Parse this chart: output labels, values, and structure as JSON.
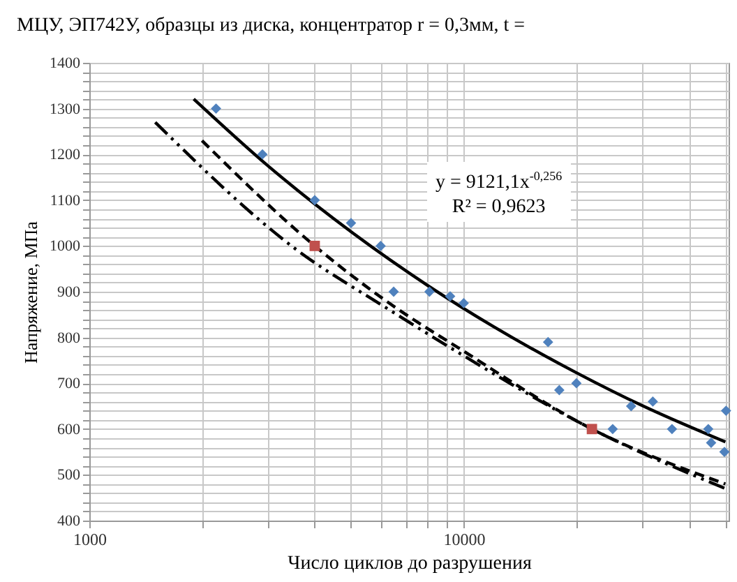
{
  "chart_data": {
    "type": "scatter",
    "title": "МЦУ, ЭП742У, образцы из диска, концентратор r = 0,3мм, t =",
    "xlabel": "Число циклов до разрушения",
    "ylabel": "Напряжение, МПа",
    "annotations": [
      "y = 9121,1x$^{-0,256}$",
      "R² = 0,9623"
    ],
    "log": "x",
    "grid": true,
    "xlim": [
      1000,
      51000
    ],
    "ylim": [
      400,
      1400
    ],
    "xticks": [
      1000,
      {
        "value": 2000,
        "label": null
      },
      {
        "value": 3000,
        "label": null
      },
      {
        "value": 4000,
        "label": null
      },
      {
        "value": 5000,
        "label": null
      },
      {
        "value": 6000,
        "label": null
      },
      {
        "value": 7000,
        "label": null
      },
      {
        "value": 8000,
        "label": null
      },
      {
        "value": 9000,
        "label": null
      },
      10000,
      {
        "value": 20000,
        "label": null
      },
      {
        "value": 30000,
        "label": null
      },
      {
        "value": 40000,
        "label": null
      },
      {
        "value": 50000,
        "label": null
      }
    ],
    "yticks": [
      400,
      {
        "value": 420,
        "label": null
      },
      {
        "value": 440,
        "label": null
      },
      {
        "value": 460,
        "label": null
      },
      {
        "value": 480,
        "label": null
      },
      500,
      {
        "value": 520,
        "label": null
      },
      {
        "value": 540,
        "label": null
      },
      {
        "value": 560,
        "label": null
      },
      {
        "value": 580,
        "label": null
      },
      600,
      {
        "value": 620,
        "label": null
      },
      {
        "value": 640,
        "label": null
      },
      {
        "value": 660,
        "label": null
      },
      {
        "value": 680,
        "label": null
      },
      700,
      {
        "value": 720,
        "label": null
      },
      {
        "value": 740,
        "label": null
      },
      {
        "value": 760,
        "label": null
      },
      {
        "value": 780,
        "label": null
      },
      800,
      {
        "value": 820,
        "label": null
      },
      {
        "value": 840,
        "label": null
      },
      {
        "value": 860,
        "label": null
      },
      {
        "value": 880,
        "label": null
      },
      900,
      {
        "value": 920,
        "label": null
      },
      {
        "value": 940,
        "label": null
      },
      {
        "value": 960,
        "label": null
      },
      {
        "value": 980,
        "label": null
      },
      1000,
      {
        "value": 1020,
        "label": null
      },
      {
        "value": 1040,
        "label": null
      },
      {
        "value": 1060,
        "label": null
      },
      {
        "value": 1080,
        "label": null
      },
      1100,
      {
        "value": 1120,
        "label": null
      },
      {
        "value": 1140,
        "label": null
      },
      {
        "value": 1160,
        "label": null
      },
      {
        "value": 1180,
        "label": null
      },
      1200,
      {
        "value": 1220,
        "label": null
      },
      {
        "value": 1240,
        "label": null
      },
      {
        "value": 1260,
        "label": null
      },
      {
        "value": 1280,
        "label": null
      },
      1300,
      {
        "value": 1320,
        "label": null
      },
      {
        "value": 1340,
        "label": null
      },
      {
        "value": 1360,
        "label": null
      },
      {
        "value": 1380,
        "label": null
      },
      1400
    ],
    "series": [
      {
        "type": "line",
        "color": "#000000",
        "line_style": "solid",
        "x": [
          1900,
          3000,
          5000,
          8000,
          12000,
          20000,
          30000,
          50000
        ],
        "values": [
          1321,
          1175,
          1031,
          914,
          824,
          723,
          651,
          572
        ]
      },
      {
        "type": "line",
        "color": "#000000",
        "line_style": "dashed",
        "x": [
          2000,
          4000,
          6200,
          10000,
          22000,
          50000
        ],
        "values": [
          1230,
          1000,
          880,
          770,
          600,
          480
        ]
      },
      {
        "type": "line",
        "color": "#000000",
        "line_style": "dashdot",
        "x": [
          1500,
          3600,
          6200,
          10000,
          22000,
          50000
        ],
        "values": [
          1270,
          990,
          865,
          760,
          600,
          470
        ]
      },
      {
        "color": "#4f81bd",
        "marker": "diamond",
        "x": [
          2180,
          2900,
          4000,
          5000,
          6000,
          6500,
          8100,
          9200,
          10000,
          16800,
          18000,
          20000,
          25000,
          28000,
          32000,
          36000,
          45000,
          45800,
          49700,
          50200
        ],
        "values": [
          1300,
          1200,
          1100,
          1050,
          1000,
          900,
          900,
          890,
          875,
          790,
          685,
          700,
          600,
          650,
          660,
          600,
          600,
          570,
          550,
          640
        ]
      },
      {
        "color": "#c0504d",
        "marker": "square",
        "x": [
          4000,
          22000
        ],
        "values": [
          1000,
          600
        ]
      }
    ]
  }
}
